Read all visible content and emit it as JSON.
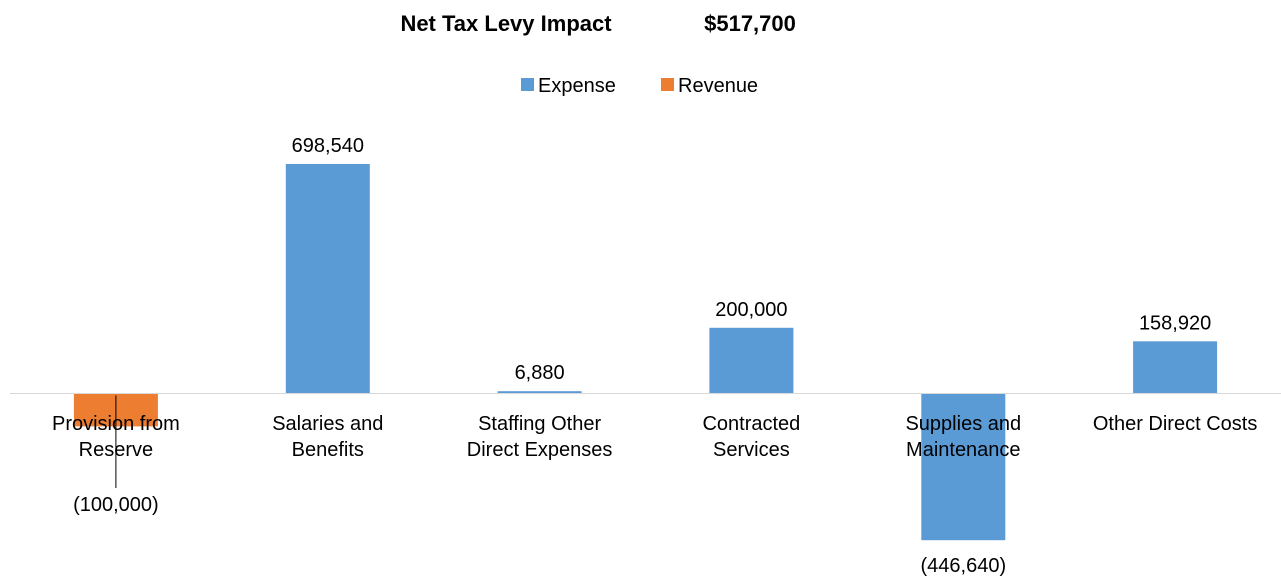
{
  "chart_data": {
    "type": "bar",
    "title": "Net Tax Levy Impact",
    "subtitle": "$517,700",
    "legend_position": "top",
    "grid": false,
    "categories": [
      [
        "Provision from",
        "Reserve"
      ],
      [
        "Salaries and",
        "Benefits"
      ],
      [
        "Staffing Other",
        "Direct Expenses"
      ],
      [
        "Contracted",
        "Services"
      ],
      [
        "Supplies and",
        "Maintenance"
      ],
      [
        "Other Direct Costs"
      ]
    ],
    "values": [
      -100000,
      698540,
      6880,
      200000,
      -446640,
      158920
    ],
    "value_labels": [
      "(100,000)",
      "698,540",
      "6,880",
      "200,000",
      "(446,640)",
      "158,920"
    ],
    "point_series": [
      "Revenue",
      "Expense",
      "Expense",
      "Expense",
      "Expense",
      "Expense"
    ],
    "series": [
      {
        "name": "Expense",
        "color": "#5b9bd5"
      },
      {
        "name": "Revenue",
        "color": "#ed7d31"
      }
    ],
    "ylim": [
      -446640,
      698540
    ]
  }
}
